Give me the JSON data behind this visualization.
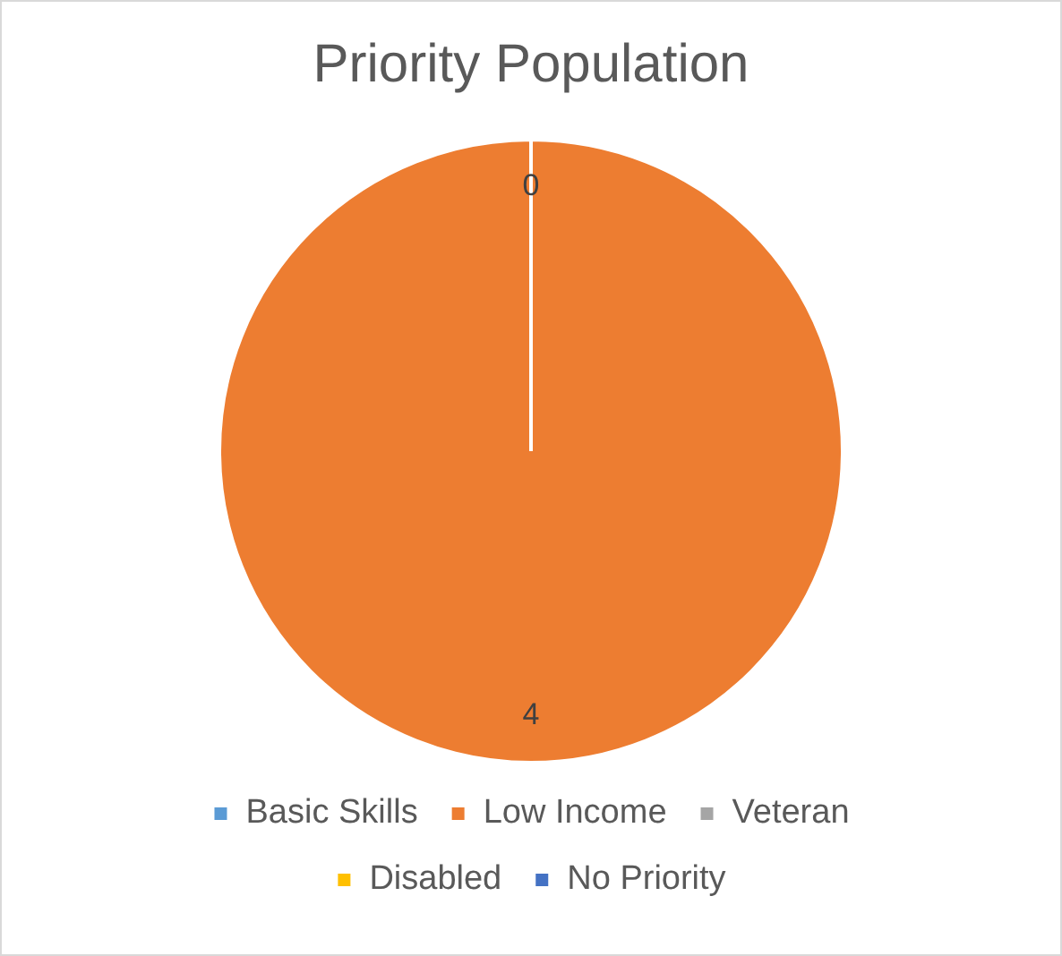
{
  "chart_data": {
    "type": "pie",
    "title": "Priority Population",
    "categories": [
      "Basic Skills",
      "Low Income",
      "Veteran",
      "Disabled",
      "No Priority"
    ],
    "values": [
      0,
      4,
      0,
      0,
      0
    ],
    "colors": [
      "#5b9bd5",
      "#ed7d31",
      "#a5a5a5",
      "#ffc000",
      "#4472c4"
    ],
    "value_labels": [
      null,
      "4",
      null,
      null,
      "0"
    ],
    "legend": "bottom"
  }
}
